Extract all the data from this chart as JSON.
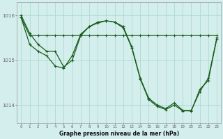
{
  "title": "Graphe pression niveau de la mer (hPa)",
  "bg_color": "#d4eeee",
  "grid_color": "#aaddcc",
  "line_color": "#1a5c1a",
  "xlim": [
    -0.5,
    23.5
  ],
  "ylim": [
    1013.6,
    1016.3
  ],
  "yticks": [
    1014,
    1015,
    1016
  ],
  "xticks": [
    0,
    1,
    2,
    3,
    4,
    5,
    6,
    7,
    8,
    9,
    10,
    11,
    12,
    13,
    14,
    15,
    16,
    17,
    18,
    19,
    20,
    21,
    22,
    23
  ],
  "s1": [
    1015.95,
    1015.55,
    1015.55,
    1015.55,
    1015.55,
    1015.55,
    1015.55,
    1015.55,
    1015.55,
    1015.55,
    1015.55,
    1015.55,
    1015.55,
    1015.55,
    1015.55,
    1015.55,
    1015.55,
    1015.55,
    1015.55,
    1015.55,
    1015.55,
    1015.55,
    1015.55,
    1015.55
  ],
  "s2": [
    1016.0,
    1015.6,
    1015.35,
    1015.2,
    1015.2,
    1014.85,
    1015.0,
    1015.55,
    1015.75,
    1015.85,
    1015.88,
    1015.85,
    1015.75,
    1015.3,
    1014.6,
    1014.15,
    1014.0,
    1013.92,
    1014.05,
    1013.88,
    1013.88,
    1014.3,
    1014.6,
    1015.5
  ],
  "s3": [
    1015.95,
    1015.35,
    1015.2,
    1015.1,
    1014.87,
    1014.82,
    1015.1,
    1015.58,
    1015.75,
    1015.83,
    1015.88,
    1015.85,
    1015.72,
    1015.28,
    1014.58,
    1014.12,
    1013.97,
    1013.9,
    1014.0,
    1013.87,
    1013.87,
    1014.35,
    1014.55,
    1015.48
  ]
}
